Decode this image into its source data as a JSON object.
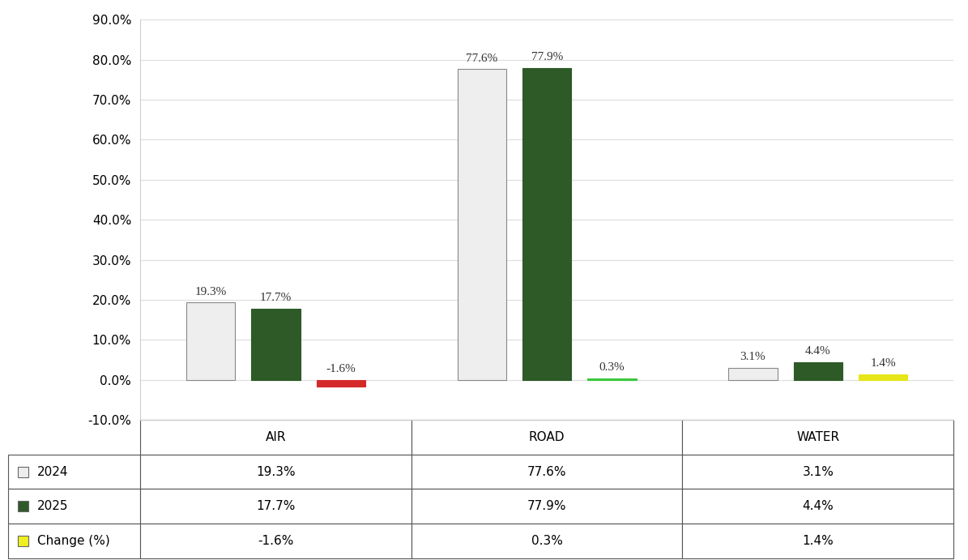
{
  "chart_data": {
    "type": "bar",
    "categories": [
      "AIR",
      "ROAD",
      "WATER"
    ],
    "series": [
      {
        "name": "2024",
        "color": "#eeeeee",
        "values": [
          19.3,
          77.6,
          3.1
        ],
        "value_labels": [
          "19.3%",
          "77.6%",
          "3.1%"
        ]
      },
      {
        "name": "2025",
        "color": "#2d5a27",
        "values": [
          17.7,
          77.9,
          4.4
        ],
        "value_labels": [
          "17.7%",
          "77.9%",
          "4.4%"
        ]
      },
      {
        "name": "Change (%)",
        "color": "#f0f020",
        "colors": [
          "#d42a2a",
          "#3cc83c",
          "#e6e619"
        ],
        "values": [
          -1.6,
          0.3,
          1.4
        ],
        "value_labels": [
          "-1.6%",
          "0.3%",
          "1.4%"
        ]
      }
    ],
    "ylim": [
      -10,
      90
    ],
    "yticks": [
      {
        "value": -10,
        "label": "-10.0%"
      },
      {
        "value": 0,
        "label": "0.0%"
      },
      {
        "value": 10,
        "label": "10.0%"
      },
      {
        "value": 20,
        "label": "20.0%"
      },
      {
        "value": 30,
        "label": "30.0%"
      },
      {
        "value": 40,
        "label": "40.0%"
      },
      {
        "value": 50,
        "label": "50.0%"
      },
      {
        "value": 60,
        "label": "60.0%"
      },
      {
        "value": 70,
        "label": "70.0%"
      },
      {
        "value": 80,
        "label": "80.0%"
      },
      {
        "value": 90,
        "label": "90.0%"
      }
    ],
    "grid": true,
    "data_labels": true,
    "tick_labels": "y"
  }
}
